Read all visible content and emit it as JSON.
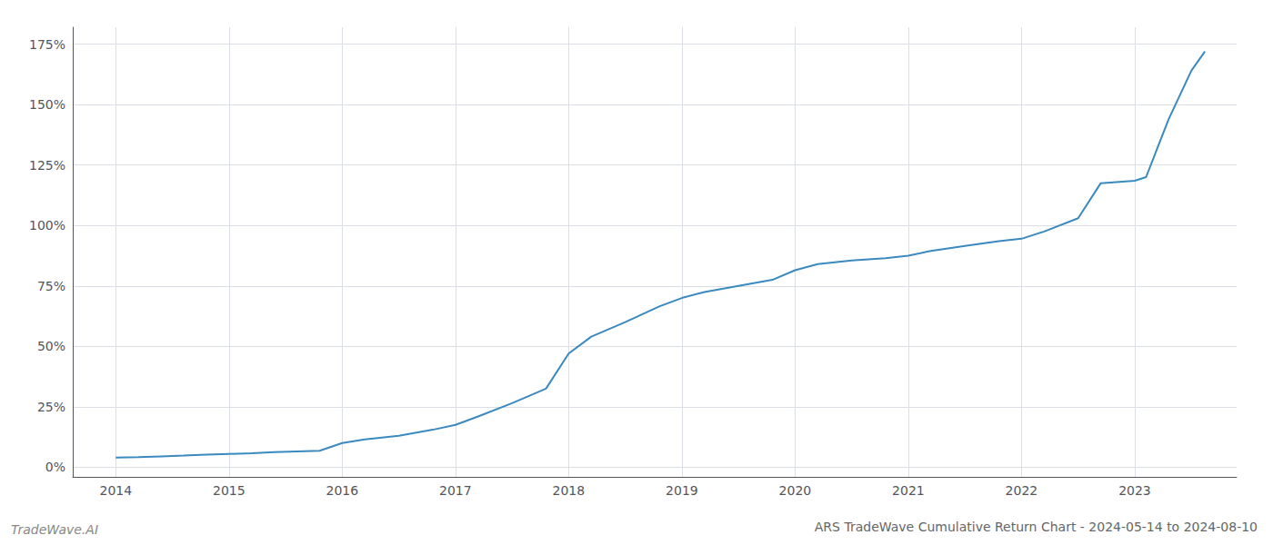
{
  "chart_data": {
    "type": "line",
    "title": "ARS TradeWave Cumulative Return Chart - 2024-05-14 to 2024-08-10",
    "annotations": [
      "TradeWave.AI"
    ],
    "x": [
      2014.0,
      2014.2,
      2014.4,
      2014.6,
      2014.8,
      2015.0,
      2015.2,
      2015.4,
      2015.6,
      2015.8,
      2016.0,
      2016.2,
      2016.5,
      2016.8,
      2017.0,
      2017.2,
      2017.5,
      2017.8,
      2018.0,
      2018.2,
      2018.5,
      2018.8,
      2019.0,
      2019.2,
      2019.5,
      2019.8,
      2020.0,
      2020.2,
      2020.5,
      2020.8,
      2021.0,
      2021.2,
      2021.5,
      2021.8,
      2022.0,
      2022.2,
      2022.5,
      2022.7,
      2023.0,
      2023.1,
      2023.3,
      2023.5,
      2023.62
    ],
    "values": [
      0.04,
      0.042,
      0.045,
      0.048,
      0.052,
      0.055,
      0.058,
      0.062,
      0.065,
      0.068,
      0.1,
      0.115,
      0.13,
      0.155,
      0.175,
      0.21,
      0.265,
      0.325,
      0.47,
      0.54,
      0.6,
      0.665,
      0.7,
      0.725,
      0.75,
      0.775,
      0.815,
      0.84,
      0.855,
      0.865,
      0.875,
      0.895,
      0.915,
      0.935,
      0.945,
      0.975,
      1.03,
      1.175,
      1.185,
      1.2,
      1.44,
      1.64,
      1.72
    ],
    "color": "#3a8abf",
    "xlim": [
      2013.62,
      2023.9
    ],
    "xticks": [
      2014,
      2015,
      2016,
      2017,
      2018,
      2019,
      2020,
      2021,
      2022,
      2023
    ],
    "ylim": [
      -0.04,
      1.82
    ],
    "yticks": [
      {
        "value": 0.0,
        "label": "0%"
      },
      {
        "value": 0.25,
        "label": "25%"
      },
      {
        "value": 0.5,
        "label": "50%"
      },
      {
        "value": 0.75,
        "label": "75%"
      },
      {
        "value": 1.0,
        "label": "100%"
      },
      {
        "value": 1.25,
        "label": "125%"
      },
      {
        "value": 1.5,
        "label": "150%"
      },
      {
        "value": 1.75,
        "label": "175%"
      }
    ],
    "grid": true
  }
}
